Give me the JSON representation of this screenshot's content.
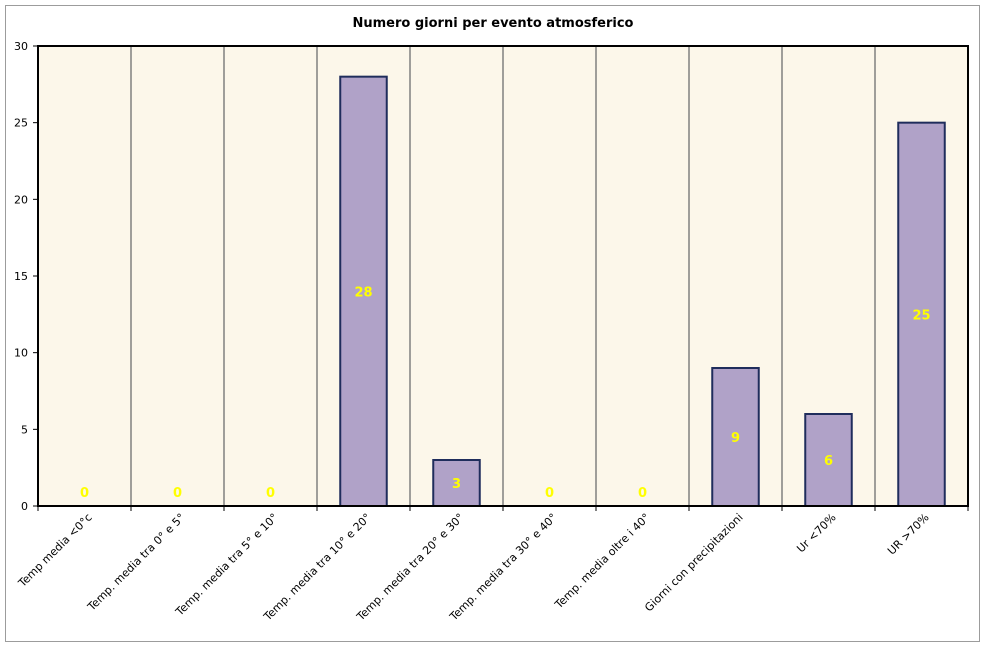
{
  "chart_data": {
    "type": "bar",
    "title": "Numero giorni per evento atmosferico",
    "xlabel": "",
    "ylabel": "",
    "categories": [
      "Temp media <0°c",
      "Temp. media tra 0° e 5°",
      "Temp. media tra 5° e 10°",
      "Temp. media tra 10° e 20°",
      "Temp. media tra 20° e 30°",
      "Temp. media tra 30° e 40°",
      "Temp. media oltre i 40°",
      "Giorni con precipitazioni",
      "Ur <70%",
      "UR >70%"
    ],
    "values": [
      0,
      0,
      0,
      28,
      3,
      0,
      0,
      9,
      6,
      25
    ],
    "ylim": [
      0,
      30
    ],
    "yticks": [
      0,
      5,
      10,
      15,
      20,
      25,
      30
    ],
    "grid": "vertical",
    "legend": "none",
    "colors": {
      "plot_background": "#fcf7ea",
      "bar_fill": "#b0a2c8",
      "bar_stroke": "#1f2d5c",
      "gridline": "#808080",
      "data_label": "#ffff00"
    }
  }
}
